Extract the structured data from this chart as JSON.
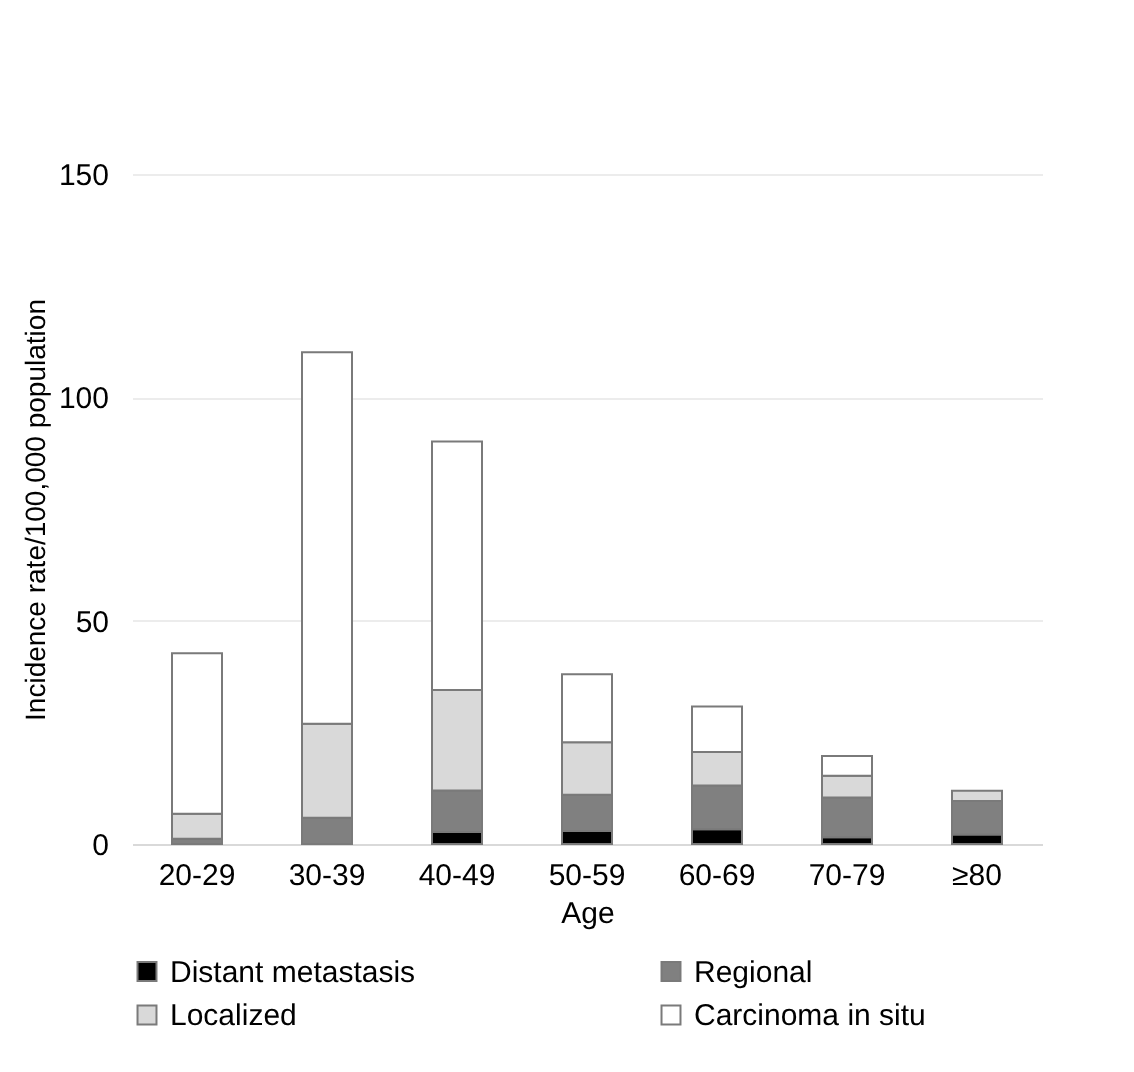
{
  "chart_data": {
    "type": "bar",
    "stacked": true,
    "xlabel": "Age",
    "ylabel": "Incidence rate/100,000 population",
    "categories": [
      "20-29",
      "30-39",
      "40-49",
      "50-59",
      "60-69",
      "70-79",
      "≥80"
    ],
    "series": [
      {
        "name": "Distant metastasis",
        "color": "#000000",
        "values": [
          null,
          null,
          2.7,
          2.9,
          3.3,
          1.5,
          2.1
        ]
      },
      {
        "name": "Regional",
        "color": "#808080",
        "values": [
          1.2,
          5.9,
          9.3,
          8.1,
          9.8,
          8.9,
          7.5
        ]
      },
      {
        "name": "Localized",
        "color": "#d9d9d9",
        "values": [
          5.6,
          21,
          22.5,
          11.8,
          7.5,
          4.9,
          2.3
        ]
      },
      {
        "name": "Carcinoma in situ",
        "color": "#ffffff",
        "values": [
          35.9,
          83.2,
          55.6,
          15.2,
          10.2,
          4.4,
          0
        ]
      }
    ],
    "ylim": [
      0,
      150
    ],
    "yticks": [
      0,
      50,
      100,
      150
    ],
    "grid": "y",
    "legend": "bottom"
  }
}
